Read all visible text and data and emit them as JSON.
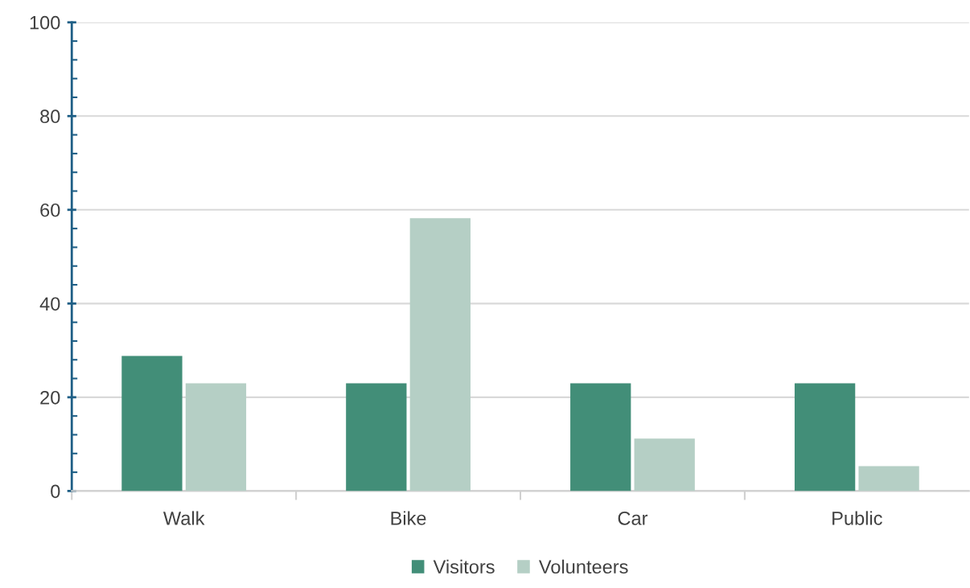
{
  "chart_data": {
    "type": "bar",
    "categories": [
      "Walk",
      "Bike",
      "Car",
      "Public"
    ],
    "series": [
      {
        "name": "Visitors",
        "color": "#428e78",
        "values": [
          28.8,
          23,
          23,
          23
        ]
      },
      {
        "name": "Volunteers",
        "color": "#b5cfc5",
        "values": [
          23,
          58.2,
          11.2,
          5.3
        ]
      }
    ],
    "ylim": [
      0,
      100
    ],
    "yticks": [
      0,
      20,
      40,
      60,
      80,
      100
    ],
    "grid": "y",
    "legend": "bottom"
  }
}
